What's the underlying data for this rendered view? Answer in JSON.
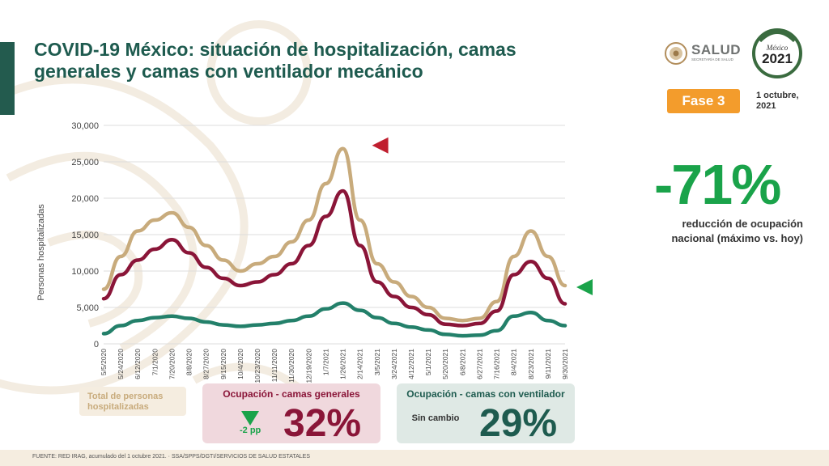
{
  "header": {
    "title": "COVID-19 México: situación de hospitalización, camas generales y camas con ventilador mecánico",
    "phase_badge": "Fase 3",
    "date": "1 octubre, 2021",
    "logo_salud": "SALUD",
    "logo_salud_sub": "SECRETARÍA DE SALUD",
    "logo_2021": "México 2021"
  },
  "headline": {
    "value": "-71%",
    "caption": "reducción de ocupación nacional (máximo vs. hoy)"
  },
  "stats": {
    "total_label": "Total de personas hospitalizadas",
    "general": {
      "label": "Ocupación - camas generales",
      "change": "-2 pp",
      "value": "32%"
    },
    "ventilator": {
      "label": "Ocupación - camas con ventilador",
      "change": "Sin cambio",
      "value": "29%"
    }
  },
  "footer": {
    "source": "FUENTE: RED IRAG, acumulado del 1 octubre 2021.  ·  SSA/SPPS/DGTI/SERVICIOS DE SALUD ESTATALES"
  },
  "colors": {
    "total": "#c8ab7c",
    "general": "#8a1538",
    "ventilator": "#23806a",
    "title": "#1e5b4f",
    "accent_green": "#1aa34a",
    "peak_marker": "#c01f2f",
    "phase_badge": "#f39c2c"
  },
  "chart_data": {
    "type": "line",
    "title": "",
    "xlabel": "",
    "ylabel": "Personas hospitalizadas",
    "ylim": [
      0,
      30000
    ],
    "yticks": [
      "0",
      "5,000",
      "10,000",
      "15,000",
      "20,000",
      "25,000",
      "30,000"
    ],
    "ytick_values": [
      0,
      5000,
      10000,
      15000,
      20000,
      25000,
      30000
    ],
    "grid": true,
    "legend": "none",
    "categories": [
      "5/5/2020",
      "5/24/2020",
      "6/12/2020",
      "7/1/2020",
      "7/20/2020",
      "8/8/2020",
      "8/27/2020",
      "9/15/2020",
      "10/4/2020",
      "10/23/2020",
      "11/11/2020",
      "11/30/2020",
      "12/19/2020",
      "1/7/2021",
      "1/26/2021",
      "2/14/2021",
      "3/5/2021",
      "3/24/2021",
      "4/12/2021",
      "5/1/2021",
      "5/20/2021",
      "6/8/2021",
      "6/27/2021",
      "7/16/2021",
      "8/4/2021",
      "8/23/2021",
      "9/11/2021",
      "9/30/2021"
    ],
    "series": [
      {
        "name": "Total de personas hospitalizadas",
        "color": "#c8ab7c",
        "values": [
          7500,
          12000,
          15500,
          17000,
          18000,
          16000,
          13500,
          11500,
          10000,
          11000,
          12000,
          14000,
          17000,
          22000,
          26800,
          17000,
          11000,
          8500,
          6500,
          5000,
          3500,
          3200,
          3500,
          5800,
          12000,
          15500,
          12000,
          8000
        ]
      },
      {
        "name": "Ocupación - camas generales",
        "color": "#8a1538",
        "values": [
          6200,
          9500,
          11500,
          13000,
          14300,
          12500,
          10500,
          9000,
          8000,
          8500,
          9500,
          11000,
          13500,
          17500,
          21000,
          13500,
          8500,
          6500,
          5000,
          4000,
          2700,
          2500,
          2800,
          4500,
          9500,
          11300,
          9000,
          5500
        ]
      },
      {
        "name": "Ocupación - camas con ventilador",
        "color": "#23806a",
        "values": [
          1400,
          2500,
          3200,
          3600,
          3800,
          3500,
          3000,
          2600,
          2400,
          2600,
          2800,
          3200,
          3800,
          4800,
          5600,
          4600,
          3600,
          2800,
          2300,
          1900,
          1300,
          1100,
          1200,
          1800,
          3800,
          4300,
          3200,
          2500
        ]
      }
    ],
    "annotations": [
      {
        "type": "peak-marker",
        "x": "1/26/2021",
        "color": "#c01f2f"
      },
      {
        "type": "current-marker",
        "x": "9/30/2021",
        "color": "#1aa34a"
      }
    ]
  }
}
